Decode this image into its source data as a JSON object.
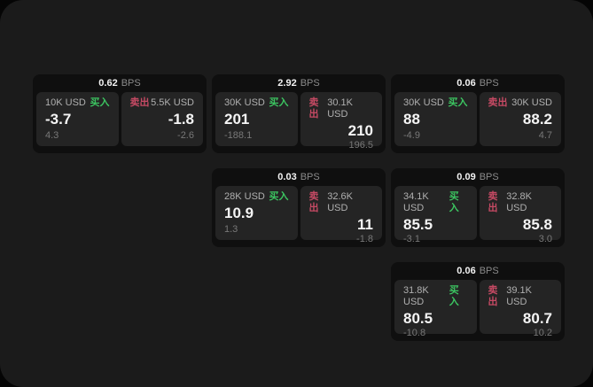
{
  "colors": {
    "panel_bg": "#1b1b1b",
    "card_bg": "#0f0f0f",
    "tile_bg": "#242424",
    "buy_green": "#3cc561",
    "sell_red": "#c64a64"
  },
  "labels": {
    "bps_unit": "BPS",
    "buy": "买入",
    "sell": "卖出"
  },
  "cards": [
    {
      "bps": "0.62",
      "buy_amount": "10K USD",
      "buy_price": "-3.7",
      "buy_delta": "4.3",
      "sell_amount": "5.5K USD",
      "sell_price": "-1.8",
      "sell_delta": "-2.6"
    },
    {
      "bps": "2.92",
      "buy_amount": "30K USD",
      "buy_price": "201",
      "buy_delta": "-188.1",
      "sell_amount": "30.1K USD",
      "sell_price": "210",
      "sell_delta": "196.5"
    },
    {
      "bps": "0.06",
      "buy_amount": "30K USD",
      "buy_price": "88",
      "buy_delta": "-4.9",
      "sell_amount": "30K USD",
      "sell_price": "88.2",
      "sell_delta": "4.7"
    },
    {
      "bps": "0.03",
      "buy_amount": "28K USD",
      "buy_price": "10.9",
      "buy_delta": "1.3",
      "sell_amount": "32.6K USD",
      "sell_price": "11",
      "sell_delta": "-1.8"
    },
    {
      "bps": "0.09",
      "buy_amount": "34.1K USD",
      "buy_price": "85.5",
      "buy_delta": "-3.1",
      "sell_amount": "32.8K USD",
      "sell_price": "85.8",
      "sell_delta": "3.0"
    },
    {
      "bps": "0.06",
      "buy_amount": "31.8K USD",
      "buy_price": "80.5",
      "buy_delta": "-10.8",
      "sell_amount": "39.1K USD",
      "sell_price": "80.7",
      "sell_delta": "10.2"
    }
  ]
}
